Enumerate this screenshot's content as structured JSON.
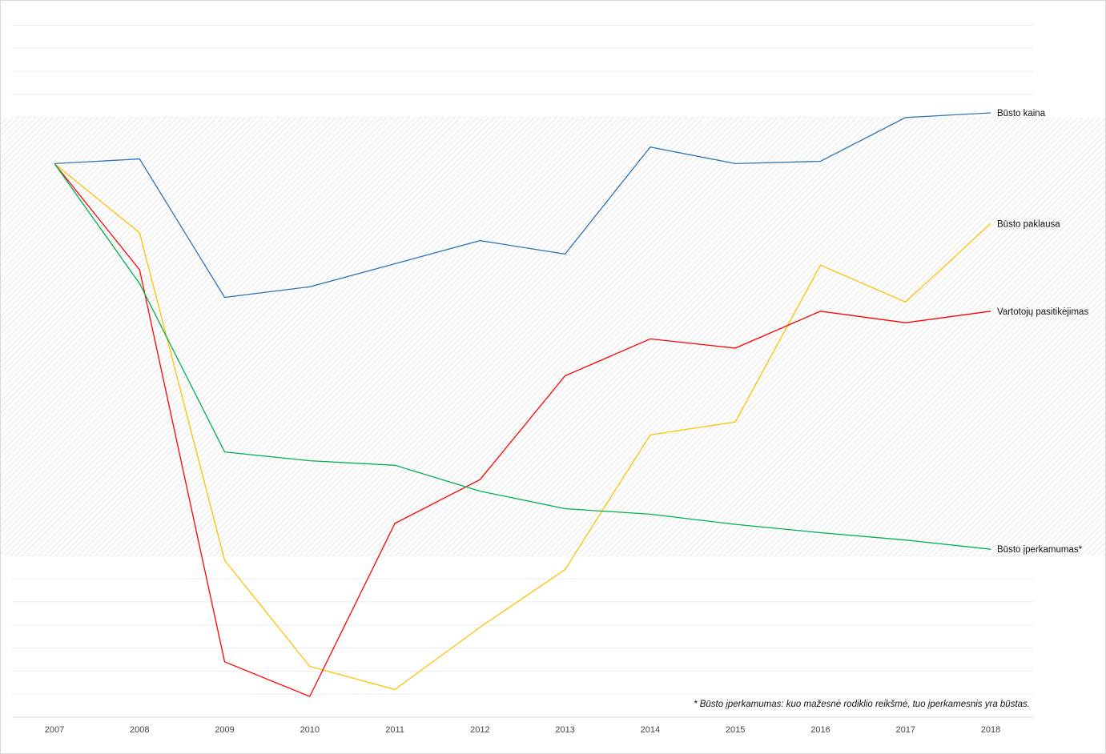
{
  "chart_data": {
    "type": "line",
    "categories": [
      "2007",
      "2008",
      "2009",
      "2010",
      "2011",
      "2012",
      "2013",
      "2014",
      "2015",
      "2016",
      "2017",
      "2018"
    ],
    "ylim": [
      -120,
      30
    ],
    "shaded_band": [
      -85,
      10
    ],
    "grid": "horizontal",
    "series": [
      {
        "name": "Būsto kaina",
        "color": "#2e75b6",
        "values": [
          0,
          1,
          -29,
          -26.7,
          -21.7,
          -16.7,
          -19.6,
          3.6,
          0,
          0.5,
          10,
          11
        ]
      },
      {
        "name": "Būsto paklausa",
        "color": "#ffc000",
        "values": [
          0,
          -15,
          -86,
          -109,
          -114,
          -100.5,
          -88,
          -58.8,
          -56,
          -22,
          -30,
          -13
        ]
      },
      {
        "name": "Vartotojų pasitikėjimas",
        "color": "#ff0000",
        "values": [
          0,
          -23,
          -108,
          -115.5,
          -78,
          -68.5,
          -46,
          -38,
          -40,
          -32,
          -34.5,
          -32
        ]
      },
      {
        "name": "Būsto įperkamumas*",
        "color": "#00b050",
        "values": [
          0,
          -26,
          -62.5,
          -64.4,
          -65.4,
          -71,
          -74.8,
          -76,
          -78.2,
          -80,
          -81.6,
          -83.6
        ]
      }
    ]
  },
  "footnote": "* Būsto įperkamumas: kuo mažesnė rodiklio reikšmė, tuo įperkamesnis yra būstas."
}
